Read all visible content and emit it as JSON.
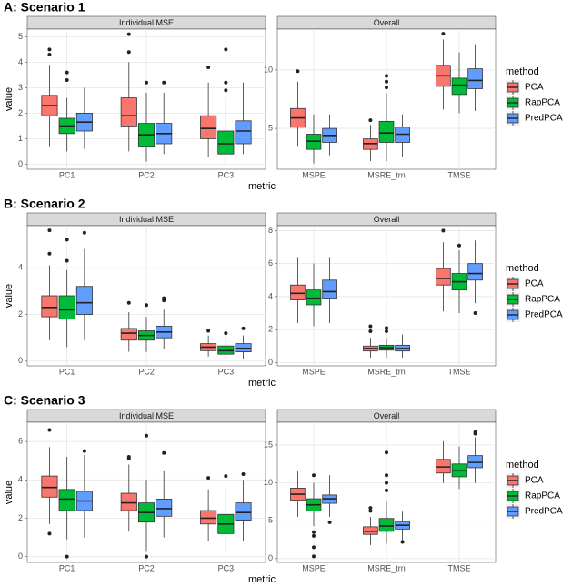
{
  "chart_data": [
    {
      "type": "box",
      "title": "A: Scenario 1",
      "xlabel": "metric",
      "ylabel": "value",
      "legend_title": "method",
      "series": [
        {
          "name": "PCA",
          "color": "#F8766D"
        },
        {
          "name": "RapPCA",
          "color": "#00BA38"
        },
        {
          "name": "PredPCA",
          "color": "#619CFF"
        }
      ],
      "panels": [
        {
          "title": "Individual MSE",
          "categories": [
            "PC1",
            "PC2",
            "PC3"
          ],
          "ylim": [
            -0.2,
            5.3
          ],
          "yticks": [
            0,
            1,
            2,
            3,
            4,
            5
          ],
          "boxes": [
            [
              {
                "whislo": 0.7,
                "q1": 1.9,
                "median": 2.3,
                "q3": 2.7,
                "whishi": 3.9,
                "outliers": [
                  4.3,
                  4.5
                ]
              },
              {
                "whislo": 0.5,
                "q1": 1.5,
                "median": 1.9,
                "q3": 2.6,
                "whishi": 4.0,
                "outliers": [
                  4.4,
                  5.1
                ]
              },
              {
                "whislo": 0.3,
                "q1": 1.0,
                "median": 1.4,
                "q3": 1.9,
                "whishi": 3.2,
                "outliers": [
                  3.8
                ]
              }
            ],
            [
              {
                "whislo": 0.5,
                "q1": 1.2,
                "median": 1.5,
                "q3": 1.8,
                "whishi": 2.6,
                "outliers": [
                  3.3,
                  3.6
                ]
              },
              {
                "whislo": 0.1,
                "q1": 0.7,
                "median": 1.15,
                "q3": 1.6,
                "whishi": 2.8,
                "outliers": [
                  3.2
                ]
              },
              {
                "whislo": 0.0,
                "q1": 0.4,
                "median": 0.8,
                "q3": 1.3,
                "whishi": 2.6,
                "outliers": [
                  2.9,
                  3.2,
                  4.5
                ]
              }
            ],
            [
              {
                "whislo": 0.6,
                "q1": 1.3,
                "median": 1.65,
                "q3": 2.0,
                "whishi": 3.0,
                "outliers": []
              },
              {
                "whislo": 0.4,
                "q1": 0.8,
                "median": 1.2,
                "q3": 1.6,
                "whishi": 2.8,
                "outliers": [
                  3.2
                ]
              },
              {
                "whislo": 0.4,
                "q1": 0.8,
                "median": 1.3,
                "q3": 1.7,
                "whishi": 3.2,
                "outliers": []
              }
            ]
          ]
        },
        {
          "title": "Overall",
          "categories": [
            "MSPE",
            "MSRE_trn",
            "TMSE"
          ],
          "ylim": [
            1.5,
            13.5
          ],
          "yticks": [
            5,
            10
          ],
          "boxes": [
            [
              {
                "whislo": 3.5,
                "q1": 5.1,
                "median": 5.9,
                "q3": 6.7,
                "whishi": 9.0,
                "outliers": [
                  9.9
                ]
              },
              {
                "whislo": 2.2,
                "q1": 3.2,
                "median": 3.7,
                "q3": 4.1,
                "whishi": 5.3,
                "outliers": [
                  5.7
                ]
              },
              {
                "whislo": 6.6,
                "q1": 8.6,
                "median": 9.5,
                "q3": 10.4,
                "whishi": 12.6,
                "outliers": [
                  13.1
                ]
              }
            ],
            [
              {
                "whislo": 2.0,
                "q1": 3.2,
                "median": 3.9,
                "q3": 4.5,
                "whishi": 6.2,
                "outliers": []
              },
              {
                "whislo": 2.2,
                "q1": 3.8,
                "median": 4.6,
                "q3": 5.6,
                "whishi": 8.0,
                "outliers": [
                  8.5,
                  9.0,
                  9.5
                ]
              },
              {
                "whislo": 6.3,
                "q1": 7.9,
                "median": 8.7,
                "q3": 9.3,
                "whishi": 11.5,
                "outliers": []
              }
            ],
            [
              {
                "whislo": 2.7,
                "q1": 3.8,
                "median": 4.4,
                "q3": 5.0,
                "whishi": 6.2,
                "outliers": []
              },
              {
                "whislo": 2.6,
                "q1": 3.8,
                "median": 4.5,
                "q3": 5.1,
                "whishi": 6.2,
                "outliers": []
              },
              {
                "whislo": 6.5,
                "q1": 8.4,
                "median": 9.1,
                "q3": 10.1,
                "whishi": 12.2,
                "outliers": []
              }
            ]
          ]
        }
      ]
    },
    {
      "type": "box",
      "title": "B: Scenario 2",
      "xlabel": "metric",
      "ylabel": "value",
      "legend_title": "method",
      "series": [
        {
          "name": "PCA",
          "color": "#F8766D"
        },
        {
          "name": "RapPCA",
          "color": "#00BA38"
        },
        {
          "name": "PredPCA",
          "color": "#619CFF"
        }
      ],
      "panels": [
        {
          "title": "Individual MSE",
          "categories": [
            "PC1",
            "PC2",
            "PC3"
          ],
          "ylim": [
            -0.2,
            5.8
          ],
          "yticks": [
            0,
            2,
            4
          ],
          "boxes": [
            [
              {
                "whislo": 0.9,
                "q1": 1.9,
                "median": 2.3,
                "q3": 2.8,
                "whishi": 4.1,
                "outliers": [
                  4.6,
                  5.6
                ]
              },
              {
                "whislo": 0.4,
                "q1": 0.9,
                "median": 1.2,
                "q3": 1.4,
                "whishi": 2.1,
                "outliers": [
                  2.5
                ]
              },
              {
                "whislo": 0.2,
                "q1": 0.45,
                "median": 0.6,
                "q3": 0.75,
                "whishi": 1.1,
                "outliers": [
                  1.3
                ]
              }
            ],
            [
              {
                "whislo": 0.6,
                "q1": 1.8,
                "median": 2.2,
                "q3": 2.8,
                "whishi": 3.9,
                "outliers": [
                  4.3,
                  5.2
                ]
              },
              {
                "whislo": 0.4,
                "q1": 0.9,
                "median": 1.1,
                "q3": 1.3,
                "whishi": 1.9,
                "outliers": [
                  2.4
                ]
              },
              {
                "whislo": 0.1,
                "q1": 0.3,
                "median": 0.45,
                "q3": 0.65,
                "whishi": 1.1,
                "outliers": [
                  1.2
                ]
              }
            ],
            [
              {
                "whislo": 0.9,
                "q1": 2.0,
                "median": 2.5,
                "q3": 3.2,
                "whishi": 4.8,
                "outliers": [
                  5.5
                ]
              },
              {
                "whislo": 0.5,
                "q1": 1.0,
                "median": 1.25,
                "q3": 1.5,
                "whishi": 2.2,
                "outliers": [
                  2.6,
                  2.7
                ]
              },
              {
                "whislo": 0.1,
                "q1": 0.4,
                "median": 0.55,
                "q3": 0.75,
                "whishi": 1.1,
                "outliers": [
                  1.4
                ]
              }
            ]
          ]
        },
        {
          "title": "Overall",
          "categories": [
            "MSPE",
            "MSRE_trn",
            "TMSE"
          ],
          "ylim": [
            -0.2,
            8.3
          ],
          "yticks": [
            0,
            2,
            4,
            6,
            8
          ],
          "boxes": [
            [
              {
                "whislo": 2.4,
                "q1": 3.8,
                "median": 4.2,
                "q3": 4.7,
                "whishi": 6.4,
                "outliers": []
              },
              {
                "whislo": 0.3,
                "q1": 0.7,
                "median": 0.85,
                "q3": 1.0,
                "whishi": 1.5,
                "outliers": [
                  1.9,
                  2.2
                ]
              },
              {
                "whislo": 3.1,
                "q1": 4.7,
                "median": 5.1,
                "q3": 5.7,
                "whishi": 7.3,
                "outliers": [
                  8.0
                ]
              }
            ],
            [
              {
                "whislo": 2.2,
                "q1": 3.5,
                "median": 3.9,
                "q3": 4.4,
                "whishi": 6.0,
                "outliers": []
              },
              {
                "whislo": 0.3,
                "q1": 0.75,
                "median": 0.9,
                "q3": 1.05,
                "whishi": 1.5,
                "outliers": [
                  1.9,
                  2.1
                ]
              },
              {
                "whislo": 3.0,
                "q1": 4.4,
                "median": 4.9,
                "q3": 5.4,
                "whishi": 6.8,
                "outliers": [
                  7.1
                ]
              }
            ],
            [
              {
                "whislo": 2.4,
                "q1": 3.9,
                "median": 4.3,
                "q3": 5.0,
                "whishi": 6.4,
                "outliers": []
              },
              {
                "whislo": 0.3,
                "q1": 0.7,
                "median": 0.85,
                "q3": 1.05,
                "whishi": 1.7,
                "outliers": []
              },
              {
                "whislo": 3.6,
                "q1": 5.0,
                "median": 5.4,
                "q3": 6.0,
                "whishi": 7.4,
                "outliers": [
                  3.0
                ]
              }
            ]
          ]
        }
      ]
    },
    {
      "type": "box",
      "title": "C: Scenario 3",
      "xlabel": "metric",
      "ylabel": "value",
      "legend_title": "method",
      "series": [
        {
          "name": "PCA",
          "color": "#F8766D"
        },
        {
          "name": "RapPCA",
          "color": "#00BA38"
        },
        {
          "name": "PredPCA",
          "color": "#619CFF"
        }
      ],
      "panels": [
        {
          "title": "Individual MSE",
          "categories": [
            "PC1",
            "PC2",
            "PC3"
          ],
          "ylim": [
            -0.3,
            7.0
          ],
          "yticks": [
            0,
            2,
            4,
            6
          ],
          "boxes": [
            [
              {
                "whislo": 1.7,
                "q1": 3.1,
                "median": 3.6,
                "q3": 4.2,
                "whishi": 5.7,
                "outliers": [
                  1.2,
                  6.6
                ]
              },
              {
                "whislo": 1.3,
                "q1": 2.4,
                "median": 2.8,
                "q3": 3.3,
                "whishi": 4.8,
                "outliers": [
                  5.1,
                  5.2
                ]
              },
              {
                "whislo": 0.8,
                "q1": 1.7,
                "median": 2.0,
                "q3": 2.4,
                "whishi": 3.5,
                "outliers": [
                  4.1
                ]
              }
            ],
            [
              {
                "whislo": 0.9,
                "q1": 2.4,
                "median": 3.0,
                "q3": 3.5,
                "whishi": 5.2,
                "outliers": [
                  0
                ]
              },
              {
                "whislo": 0.3,
                "q1": 1.8,
                "median": 2.3,
                "q3": 2.8,
                "whishi": 4.0,
                "outliers": [
                  0,
                  6.3
                ]
              },
              {
                "whislo": 0.3,
                "q1": 1.2,
                "median": 1.7,
                "q3": 2.2,
                "whishi": 3.6,
                "outliers": [
                  4.2
                ]
              }
            ],
            [
              {
                "whislo": 1.0,
                "q1": 2.4,
                "median": 2.9,
                "q3": 3.4,
                "whishi": 5.3,
                "outliers": [
                  5.5
                ]
              },
              {
                "whislo": 1.0,
                "q1": 2.1,
                "median": 2.5,
                "q3": 3.0,
                "whishi": 4.5,
                "outliers": [
                  5.4
                ]
              },
              {
                "whislo": 0.8,
                "q1": 1.9,
                "median": 2.3,
                "q3": 2.8,
                "whishi": 4.0,
                "outliers": [
                  4.3
                ]
              }
            ]
          ]
        },
        {
          "title": "Overall",
          "categories": [
            "MSPE",
            "MSRE_trn",
            "TMSE"
          ],
          "ylim": [
            -0.5,
            18
          ],
          "yticks": [
            0,
            5,
            10,
            15
          ],
          "boxes": [
            [
              {
                "whislo": 5.5,
                "q1": 7.7,
                "median": 8.5,
                "q3": 9.3,
                "whishi": 11.5,
                "outliers": []
              },
              {
                "whislo": 1.8,
                "q1": 3.2,
                "median": 3.6,
                "q3": 4.2,
                "whishi": 5.5,
                "outliers": [
                  6.3,
                  6.7
                ]
              },
              {
                "whislo": 10.0,
                "q1": 11.3,
                "median": 12.1,
                "q3": 13.1,
                "whishi": 15.5,
                "outliers": []
              }
            ],
            [
              {
                "whislo": 4.3,
                "q1": 6.3,
                "median": 7.1,
                "q3": 7.9,
                "whishi": 10.0,
                "outliers": [
                  0.3,
                  1.5,
                  3.0,
                  3.5,
                  11.0
                ]
              },
              {
                "whislo": 2.0,
                "q1": 3.6,
                "median": 4.3,
                "q3": 5.3,
                "whishi": 7.5,
                "outliers": [
                  9.0,
                  10.0,
                  11.0,
                  14.0
                ]
              },
              {
                "whislo": 9.2,
                "q1": 10.8,
                "median": 11.6,
                "q3": 12.5,
                "whishi": 14.8,
                "outliers": []
              }
            ],
            [
              {
                "whislo": 5.5,
                "q1": 7.3,
                "median": 7.9,
                "q3": 8.4,
                "whishi": 11.0,
                "outliers": [
                  4.8
                ]
              },
              {
                "whislo": 2.4,
                "q1": 3.9,
                "median": 4.4,
                "q3": 4.9,
                "whishi": 6.2,
                "outliers": [
                  2.2
                ]
              },
              {
                "whislo": 10.0,
                "q1": 12.0,
                "median": 12.7,
                "q3": 13.6,
                "whishi": 16.0,
                "outliers": [
                  16.5,
                  16.7
                ]
              }
            ]
          ]
        }
      ]
    }
  ]
}
